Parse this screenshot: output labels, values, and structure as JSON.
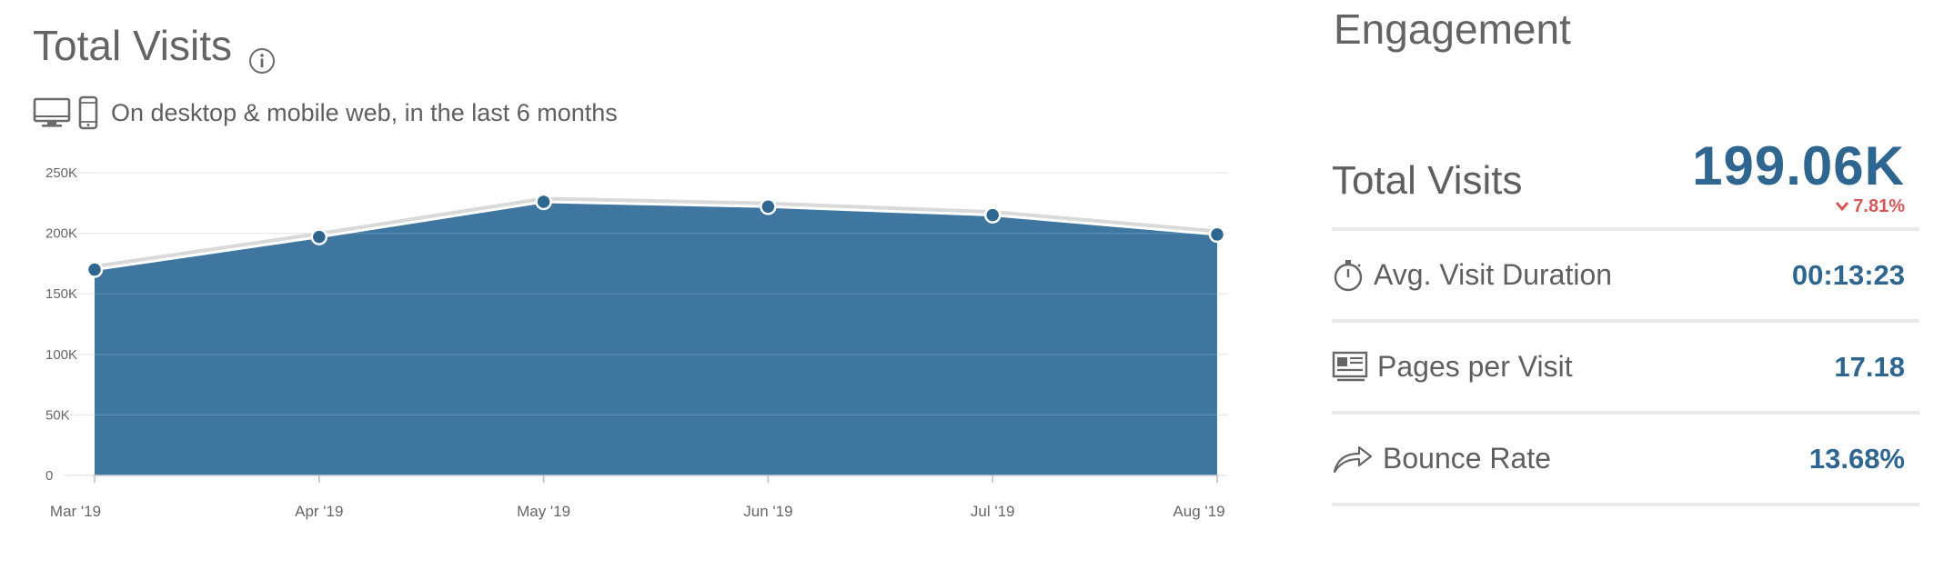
{
  "left": {
    "title": "Total Visits",
    "info_icon": "info-circle-icon",
    "subtitle": "On desktop & mobile web, in the last 6 months",
    "device_icons": [
      "desktop-icon",
      "mobile-icon"
    ]
  },
  "chart_data": {
    "type": "area",
    "categories": [
      "Mar '19",
      "Apr '19",
      "May '19",
      "Jun '19",
      "Jul '19",
      "Aug '19"
    ],
    "values": [
      170000,
      197000,
      226000,
      222000,
      215000,
      199000
    ],
    "title": "",
    "xlabel": "",
    "ylabel": "",
    "ylim": [
      0,
      250000
    ],
    "yticks": [
      0,
      50000,
      100000,
      150000,
      200000,
      250000
    ],
    "ytick_labels": [
      "0",
      "50K",
      "100K",
      "150K",
      "200K",
      "250K"
    ],
    "grid": true,
    "colors": {
      "fill": "#3e76a0",
      "line": "#ffffff",
      "marker": "#2f6690",
      "grid": "#e6e6e6"
    }
  },
  "engagement": {
    "title": "Engagement",
    "total_visits": {
      "label": "Total Visits",
      "value": "199.06K",
      "change": "7.81%",
      "change_direction": "down",
      "change_color": "#d45858"
    },
    "metrics": [
      {
        "label": "Avg. Visit Duration",
        "value": "00:13:23",
        "icon": "stopwatch-icon"
      },
      {
        "label": "Pages per Visit",
        "value": "17.18",
        "icon": "pages-icon"
      },
      {
        "label": "Bounce Rate",
        "value": "13.68%",
        "icon": "bounce-arrow-icon"
      }
    ],
    "value_color": "#2f6690"
  }
}
